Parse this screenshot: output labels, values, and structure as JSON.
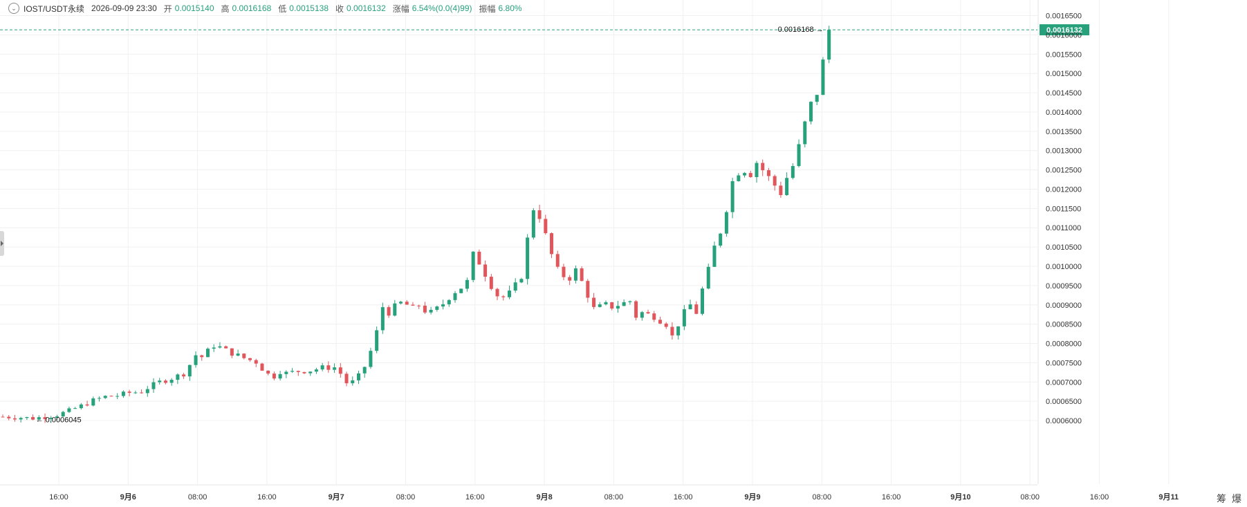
{
  "header": {
    "symbol": "IOST/USDT永续",
    "datetime": "2026-09-09 23:30",
    "open_label": "开",
    "open_value": "0.0015140",
    "high_label": "高",
    "high_value": "0.0016168",
    "low_label": "低",
    "low_value": "0.0015138",
    "close_label": "收",
    "close_value": "0.0016132",
    "change_label": "涨幅",
    "change_value": "6.54%(0.0(4)99)",
    "amplitude_label": "振幅",
    "amplitude_value": "6.80%"
  },
  "corner": {
    "btn1": "筹",
    "btn2": "爆"
  },
  "colors": {
    "up": "#26a17b",
    "down": "#e0565b",
    "grid": "#f0f0f0",
    "axis_text": "#333333",
    "last_price_bg": "#26a17b"
  },
  "chart_data": {
    "type": "candlestick",
    "price_axis": {
      "ticks": [
        "0.0016500",
        "0.0016000",
        "0.0015500",
        "0.0015000",
        "0.0014500",
        "0.0014000",
        "0.0013500",
        "0.0013000",
        "0.0012500",
        "0.0012000",
        "0.0011500",
        "0.0011000",
        "0.0010500",
        "0.0010000",
        "0.0009500",
        "0.0009000",
        "0.0008500",
        "0.0008000",
        "0.0007500",
        "0.0007000",
        "0.0006500",
        "0.0006000"
      ],
      "range": [
        0.000575,
        0.0016725
      ]
    },
    "time_axis": {
      "ticks": [
        "16:00",
        "9月6",
        "08:00",
        "16:00",
        "9月7",
        "08:00",
        "16:00",
        "9月8",
        "08:00",
        "16:00",
        "9月9",
        "08:00",
        "16:00",
        "9月10",
        "08:00",
        "16:00",
        "9月11"
      ],
      "bold": [
        false,
        true,
        false,
        false,
        true,
        false,
        false,
        true,
        false,
        false,
        true,
        false,
        false,
        true,
        false,
        false,
        true
      ]
    },
    "high_marker": "0.0016168",
    "low_marker": "0.0006045",
    "last_price": "0.0016132",
    "last_value": 0.0016132,
    "price_path": [
      [
        0,
        0.00061
      ],
      [
        3,
        0.000608
      ],
      [
        5,
        0.000606
      ],
      [
        7,
        0.00061
      ],
      [
        9,
        0.000615
      ],
      [
        11,
        0.000625
      ],
      [
        13,
        0.000638
      ],
      [
        15,
        0.000652
      ],
      [
        17,
        0.000662
      ],
      [
        19,
        0.000665
      ],
      [
        21,
        0.000672
      ],
      [
        23,
        0.000675
      ],
      [
        24,
        0.000685
      ],
      [
        26,
        0.0007
      ],
      [
        28,
        0.00071
      ],
      [
        30,
        0.000722
      ],
      [
        31,
        0.000745
      ],
      [
        32,
        0.00077
      ],
      [
        33,
        0.000765
      ],
      [
        34,
        0.00078
      ],
      [
        35,
        0.000795
      ],
      [
        36,
        0.00079
      ],
      [
        37,
        0.000782
      ],
      [
        38,
        0.000775
      ],
      [
        40,
        0.000762
      ],
      [
        42,
        0.000752
      ],
      [
        43,
        0.000735
      ],
      [
        44,
        0.00072
      ],
      [
        45,
        0.000715
      ],
      [
        46,
        0.000728
      ],
      [
        47,
        0.000723
      ],
      [
        49,
        0.000728
      ],
      [
        51,
        0.00073
      ],
      [
        53,
        0.000737
      ],
      [
        55,
        0.000738
      ],
      [
        56,
        0.000722
      ],
      [
        57,
        0.000698
      ],
      [
        58,
        0.0007
      ],
      [
        59,
        0.000715
      ],
      [
        60,
        0.00074
      ],
      [
        61,
        0.00078
      ],
      [
        62,
        0.00083
      ],
      [
        63,
        0.000895
      ],
      [
        64,
        0.00088
      ],
      [
        65,
        0.000895
      ],
      [
        66,
        0.000905
      ],
      [
        67,
        0.0009
      ],
      [
        68,
        0.00089
      ],
      [
        69,
        0.0009
      ],
      [
        70,
        0.000885
      ],
      [
        71,
        0.00088
      ],
      [
        72,
        0.00089
      ],
      [
        73,
        0.000903
      ],
      [
        74,
        0.00092
      ],
      [
        75,
        0.000935
      ],
      [
        76,
        0.000945
      ],
      [
        77,
        0.00096
      ],
      [
        78,
        0.00103
      ],
      [
        79,
        0.00101
      ],
      [
        80,
        0.00098
      ],
      [
        81,
        0.00095
      ],
      [
        82,
        0.000925
      ],
      [
        83,
        0.00092
      ],
      [
        84,
        0.00093
      ],
      [
        85,
        0.00095
      ],
      [
        86,
        0.000975
      ],
      [
        87,
        0.00107
      ],
      [
        88,
        0.00115
      ],
      [
        89,
        0.00113
      ],
      [
        90,
        0.00108
      ],
      [
        91,
        0.00103
      ],
      [
        92,
        0.00099
      ],
      [
        93,
        0.000975
      ],
      [
        94,
        0.00097
      ],
      [
        95,
        0.00099
      ],
      [
        96,
        0.00096
      ],
      [
        97,
        0.000925
      ],
      [
        98,
        0.00089
      ],
      [
        99,
        0.000895
      ],
      [
        100,
        0.0009
      ],
      [
        101,
        0.000895
      ],
      [
        102,
        0.0009
      ],
      [
        103,
        0.000905
      ],
      [
        104,
        0.00091
      ],
      [
        105,
        0.00087
      ],
      [
        106,
        0.00088
      ],
      [
        107,
        0.000875
      ],
      [
        108,
        0.00087
      ],
      [
        109,
        0.00086
      ],
      [
        110,
        0.00085
      ],
      [
        111,
        0.000818
      ],
      [
        112,
        0.00085
      ],
      [
        113,
        0.00088
      ],
      [
        114,
        0.0009
      ],
      [
        115,
        0.00088
      ],
      [
        116,
        0.00094
      ],
      [
        117,
        0.00099
      ],
      [
        118,
        0.00105
      ],
      [
        119,
        0.00109
      ],
      [
        120,
        0.00115
      ],
      [
        121,
        0.00122
      ],
      [
        122,
        0.001245
      ],
      [
        123,
        0.00125
      ],
      [
        124,
        0.00124
      ],
      [
        125,
        0.00127
      ],
      [
        126,
        0.00125
      ],
      [
        127,
        0.00123
      ],
      [
        128,
        0.00121
      ],
      [
        129,
        0.00119
      ],
      [
        130,
        0.00123
      ],
      [
        131,
        0.00126
      ],
      [
        132,
        0.00131
      ],
      [
        133,
        0.00137
      ],
      [
        134,
        0.00142
      ],
      [
        135,
        0.00145
      ],
      [
        136,
        0.00153
      ],
      [
        137,
        0.001613
      ]
    ]
  }
}
